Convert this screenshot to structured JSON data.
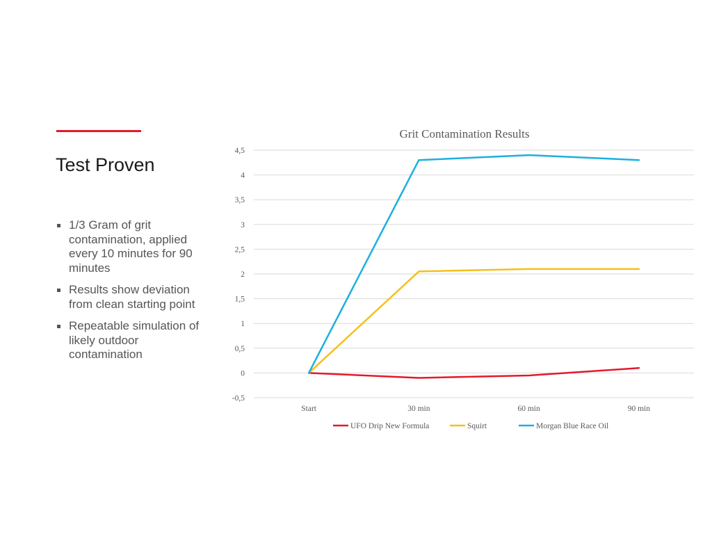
{
  "slide": {
    "title": "Test Proven",
    "accent_color": "#e3192d",
    "bullets": [
      "1/3 Gram of grit contamination, applied every 10 minutes for 90 minutes",
      "Results show deviation from clean starting point",
      "Repeatable simulation of likely outdoor contamination"
    ]
  },
  "chart_data": {
    "type": "line",
    "title": "Grit Contamination Results",
    "xlabel": "",
    "ylabel": "",
    "categories": [
      "Start",
      "30 min",
      "60 min",
      "90 min"
    ],
    "ylim": [
      -0.5,
      4.5
    ],
    "yticks": [
      -0.5,
      0,
      0.5,
      1,
      1.5,
      2,
      2.5,
      3,
      3.5,
      4,
      4.5
    ],
    "ytick_labels": [
      "-0,5",
      "0",
      "0,5",
      "1",
      "1,5",
      "2",
      "2,5",
      "3",
      "3,5",
      "4",
      "4,5"
    ],
    "grid": true,
    "legend": "bottom",
    "series": [
      {
        "name": "UFO Drip New Formula",
        "color": "#e3192d",
        "values": [
          0,
          -0.1,
          -0.05,
          0.1
        ]
      },
      {
        "name": "Squirt",
        "color": "#f5c01b",
        "values": [
          0,
          2.05,
          2.1,
          2.1
        ]
      },
      {
        "name": "Morgan Blue Race Oil",
        "color": "#1ab0e0",
        "values": [
          0,
          4.3,
          4.4,
          4.3
        ]
      }
    ]
  }
}
